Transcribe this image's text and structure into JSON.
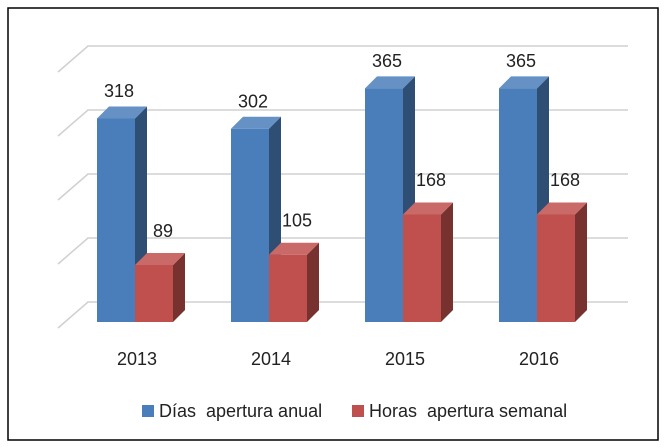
{
  "chart_data": {
    "type": "bar3d",
    "categories": [
      "2013",
      "2014",
      "2015",
      "2016"
    ],
    "series": [
      {
        "name": "Días  apertura anual",
        "color": "#4a7ebb",
        "values": [
          318,
          302,
          365,
          365
        ]
      },
      {
        "name": "Horas  apertura semanal",
        "color": "#c0504d",
        "values": [
          89,
          105,
          168,
          168
        ]
      }
    ],
    "ylim": [
      0,
      400
    ],
    "yticks": [
      0,
      100,
      200,
      300,
      400
    ],
    "grid": true,
    "legend": "bottom"
  }
}
